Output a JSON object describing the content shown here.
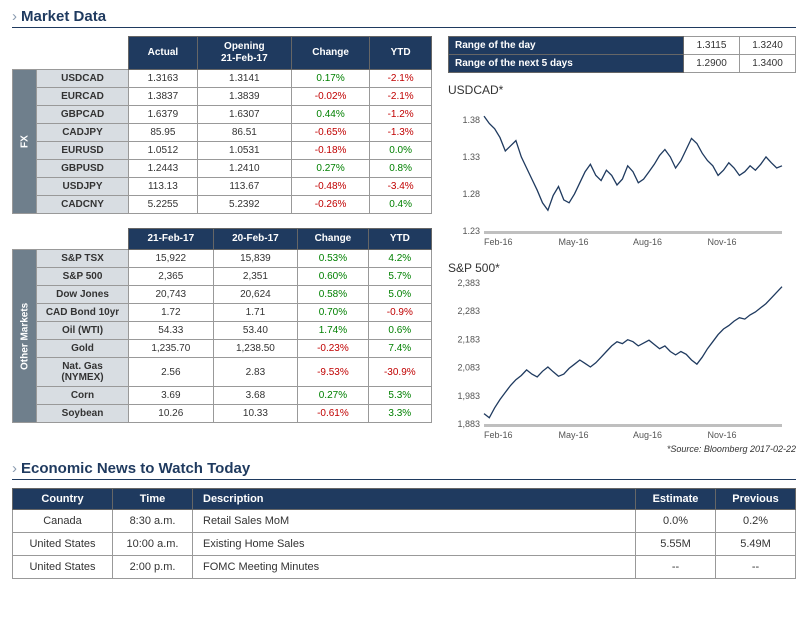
{
  "titles": {
    "market_data": "Market Data",
    "economic_news": "Economic News to Watch Today"
  },
  "fx_table": {
    "side_label": "FX",
    "headers": {
      "actual": "Actual",
      "opening": "Opening",
      "opening_date": "21-Feb-17",
      "change": "Change",
      "ytd": "YTD"
    },
    "rows": [
      {
        "name": "USDCAD",
        "actual": "1.3163",
        "opening": "1.3141",
        "change": "0.17%",
        "change_sign": 1,
        "ytd": "-2.1%",
        "ytd_sign": -1
      },
      {
        "name": "EURCAD",
        "actual": "1.3837",
        "opening": "1.3839",
        "change": "-0.02%",
        "change_sign": -1,
        "ytd": "-2.1%",
        "ytd_sign": -1
      },
      {
        "name": "GBPCAD",
        "actual": "1.6379",
        "opening": "1.6307",
        "change": "0.44%",
        "change_sign": 1,
        "ytd": "-1.2%",
        "ytd_sign": -1
      },
      {
        "name": "CADJPY",
        "actual": "85.95",
        "opening": "86.51",
        "change": "-0.65%",
        "change_sign": -1,
        "ytd": "-1.3%",
        "ytd_sign": -1
      },
      {
        "name": "EURUSD",
        "actual": "1.0512",
        "opening": "1.0531",
        "change": "-0.18%",
        "change_sign": -1,
        "ytd": "0.0%",
        "ytd_sign": 1
      },
      {
        "name": "GBPUSD",
        "actual": "1.2443",
        "opening": "1.2410",
        "change": "0.27%",
        "change_sign": 1,
        "ytd": "0.8%",
        "ytd_sign": 1
      },
      {
        "name": "USDJPY",
        "actual": "113.13",
        "opening": "113.67",
        "change": "-0.48%",
        "change_sign": -1,
        "ytd": "-3.4%",
        "ytd_sign": -1
      },
      {
        "name": "CADCNY",
        "actual": "5.2255",
        "opening": "5.2392",
        "change": "-0.26%",
        "change_sign": -1,
        "ytd": "0.4%",
        "ytd_sign": 1
      }
    ]
  },
  "other_table": {
    "side_label": "Other Markets",
    "headers": {
      "d1": "21-Feb-17",
      "d2": "20-Feb-17",
      "change": "Change",
      "ytd": "YTD"
    },
    "rows": [
      {
        "name": "S&P TSX",
        "d1": "15,922",
        "d2": "15,839",
        "change": "0.53%",
        "change_sign": 1,
        "ytd": "4.2%",
        "ytd_sign": 1
      },
      {
        "name": "S&P 500",
        "d1": "2,365",
        "d2": "2,351",
        "change": "0.60%",
        "change_sign": 1,
        "ytd": "5.7%",
        "ytd_sign": 1
      },
      {
        "name": "Dow Jones",
        "d1": "20,743",
        "d2": "20,624",
        "change": "0.58%",
        "change_sign": 1,
        "ytd": "5.0%",
        "ytd_sign": 1
      },
      {
        "name": "CAD Bond 10yr",
        "d1": "1.72",
        "d2": "1.71",
        "change": "0.70%",
        "change_sign": 1,
        "ytd": "-0.9%",
        "ytd_sign": -1
      },
      {
        "name": "Oil (WTI)",
        "d1": "54.33",
        "d2": "53.40",
        "change": "1.74%",
        "change_sign": 1,
        "ytd": "0.6%",
        "ytd_sign": 1
      },
      {
        "name": "Gold",
        "d1": "1,235.70",
        "d2": "1,238.50",
        "change": "-0.23%",
        "change_sign": -1,
        "ytd": "7.4%",
        "ytd_sign": 1
      },
      {
        "name": "Nat. Gas (NYMEX)",
        "d1": "2.56",
        "d2": "2.83",
        "change": "-9.53%",
        "change_sign": -1,
        "ytd": "-30.9%",
        "ytd_sign": -1
      },
      {
        "name": "Corn",
        "d1": "3.69",
        "d2": "3.68",
        "change": "0.27%",
        "change_sign": 1,
        "ytd": "5.3%",
        "ytd_sign": 1
      },
      {
        "name": "Soybean",
        "d1": "10.26",
        "d2": "10.33",
        "change": "-0.61%",
        "change_sign": -1,
        "ytd": "3.3%",
        "ytd_sign": 1
      }
    ]
  },
  "range_table": {
    "rows": [
      {
        "label": "Range of the day",
        "low": "1.3115",
        "high": "1.3240"
      },
      {
        "label": "Range of the next 5 days",
        "low": "1.2900",
        "high": "1.3400"
      }
    ]
  },
  "charts": {
    "x_labels": [
      "Feb-16",
      "May-16",
      "Aug-16",
      "Nov-16"
    ],
    "line_color": "#1f3a5f",
    "usdcad": {
      "title": "USDCAD*",
      "y_ticks": [
        "1.23",
        "1.28",
        "1.33",
        "1.38"
      ],
      "ylim": [
        1.23,
        1.4
      ],
      "values": [
        1.385,
        1.375,
        1.368,
        1.356,
        1.338,
        1.345,
        1.352,
        1.33,
        1.315,
        1.3,
        1.285,
        1.268,
        1.258,
        1.278,
        1.29,
        1.272,
        1.268,
        1.28,
        1.295,
        1.31,
        1.32,
        1.305,
        1.298,
        1.312,
        1.305,
        1.292,
        1.3,
        1.318,
        1.31,
        1.295,
        1.3,
        1.31,
        1.32,
        1.332,
        1.34,
        1.33,
        1.315,
        1.325,
        1.34,
        1.355,
        1.348,
        1.335,
        1.325,
        1.318,
        1.305,
        1.312,
        1.322,
        1.315,
        1.305,
        1.31,
        1.318,
        1.312,
        1.32,
        1.33,
        1.322,
        1.315,
        1.318
      ]
    },
    "sp500": {
      "title": "S&P 500*",
      "y_ticks": [
        "1,883",
        "1,983",
        "2,083",
        "2,183",
        "2,283",
        "2,383"
      ],
      "ylim": [
        1883,
        2383
      ],
      "values": [
        1920,
        1905,
        1940,
        1970,
        1995,
        2020,
        2040,
        2055,
        2075,
        2060,
        2050,
        2070,
        2085,
        2068,
        2052,
        2060,
        2080,
        2095,
        2110,
        2098,
        2085,
        2100,
        2120,
        2140,
        2160,
        2175,
        2168,
        2182,
        2175,
        2160,
        2170,
        2180,
        2165,
        2150,
        2160,
        2140,
        2128,
        2140,
        2130,
        2110,
        2095,
        2120,
        2150,
        2175,
        2200,
        2220,
        2232,
        2248,
        2260,
        2255,
        2270,
        2280,
        2295,
        2310,
        2330,
        2350,
        2370
      ]
    },
    "source": "*Source: Bloomberg  2017-02-22"
  },
  "news_table": {
    "headers": {
      "country": "Country",
      "time": "Time",
      "desc": "Description",
      "est": "Estimate",
      "prev": "Previous"
    },
    "rows": [
      {
        "country": "Canada",
        "time": "8:30 a.m.",
        "desc": "Retail Sales MoM",
        "est": "0.0%",
        "prev": "0.2%"
      },
      {
        "country": "United States",
        "time": "10:00 a.m.",
        "desc": "Existing Home Sales",
        "est": "5.55M",
        "prev": "5.49M"
      },
      {
        "country": "United States",
        "time": "2:00 p.m.",
        "desc": "FOMC Meeting Minutes",
        "est": "--",
        "prev": "--"
      }
    ]
  }
}
